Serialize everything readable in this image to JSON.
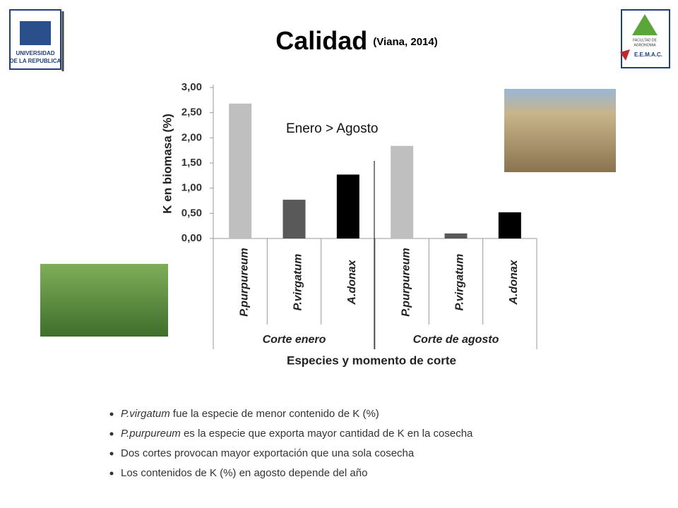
{
  "title": "Calidad",
  "title_note": "(Viana, 2014)",
  "logo_left": {
    "line1": "UNIVERSIDAD",
    "line2": "DE LA REPUBLICA"
  },
  "logo_right": {
    "line1": "FACULTAD DE",
    "line2": "AGRONOMIA",
    "line3": "E.E.M.A.C."
  },
  "bullets": [
    {
      "italic": "P.virgatum",
      "text": " fue la especie de menor contenido de K (%)"
    },
    {
      "italic": "P.purpureum",
      "text": " es la especie que exporta mayor cantidad de K en la cosecha"
    },
    {
      "text": "Dos cortes provocan mayor exportación que una sola cosecha"
    },
    {
      "text": "Los contenidos de K (%) en agosto depende del año"
    }
  ],
  "chart_data": {
    "type": "bar",
    "categories": [
      "P.purpureum",
      "P.virgatum",
      "A.donax",
      "P.purpureum",
      "P.virgatum",
      "A.donax"
    ],
    "values": [
      2.68,
      0.77,
      1.27,
      1.84,
      0.1,
      0.52
    ],
    "colors": [
      "#bfbfbf",
      "#595959",
      "#000000",
      "#bfbfbf",
      "#595959",
      "#000000"
    ],
    "groups": [
      "Corte enero",
      "Corte de agosto"
    ],
    "xlabel": "Especies y momento de corte",
    "ylabel": "K en biomasa (%)",
    "annotation": "Enero > Agosto",
    "ylim": [
      0,
      3
    ],
    "yticks": [
      {
        "value": 0,
        "label": "0,00"
      },
      {
        "value": 0.5,
        "label": "0,50"
      },
      {
        "value": 1,
        "label": "1,00"
      },
      {
        "value": 1.5,
        "label": "1,50"
      },
      {
        "value": 2,
        "label": "2,00"
      },
      {
        "value": 2.5,
        "label": "2,50"
      },
      {
        "value": 3,
        "label": "3,00"
      }
    ]
  }
}
